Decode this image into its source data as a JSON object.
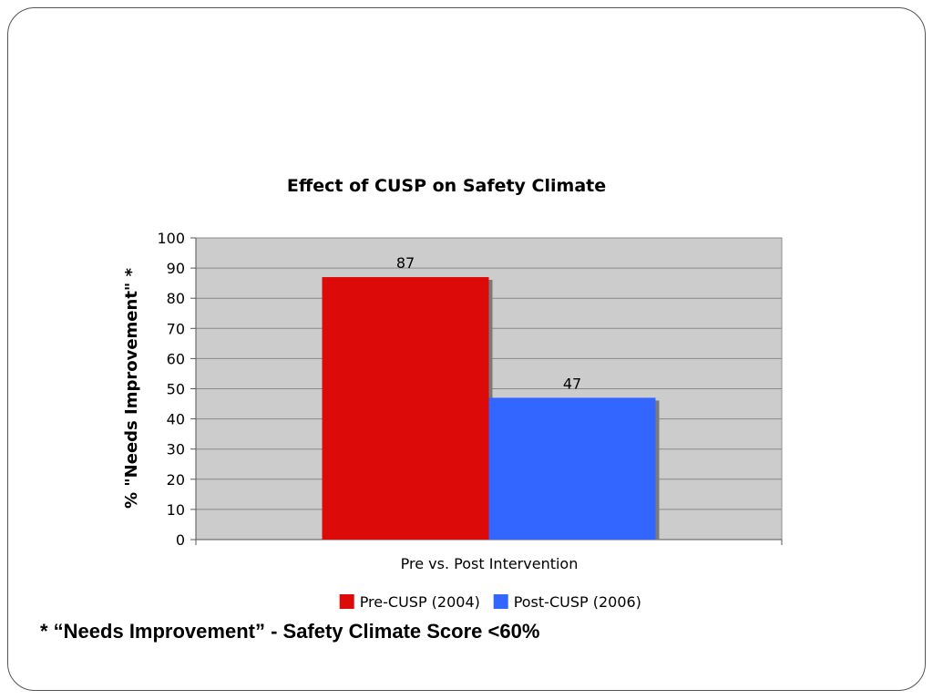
{
  "chart_data": {
    "type": "bar",
    "title": "Effect of CUSP on Safety Climate",
    "xlabel": "Pre vs. Post Intervention",
    "ylabel": "% \"Needs Improvement\" *",
    "ylim": [
      0,
      100
    ],
    "ytick_step": 10,
    "grid": true,
    "legend_position": "bottom",
    "plot_background": "#cccccc",
    "series": [
      {
        "name": "Pre-CUSP (2004)",
        "values": [
          87
        ],
        "color": "#dd0a0a"
      },
      {
        "name": "Post-CUSP (2006)",
        "values": [
          47
        ],
        "color": "#3366ff"
      }
    ]
  },
  "footnote": "* “Needs Improvement” - Safety Climate Score <60%"
}
